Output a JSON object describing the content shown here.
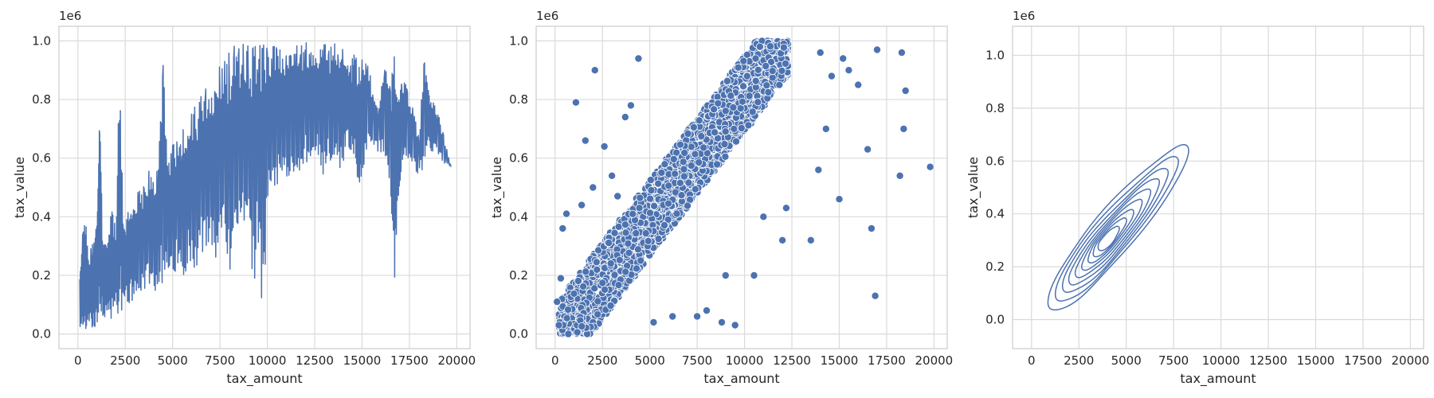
{
  "colors": {
    "series": "#4c72b0",
    "grid": "#dadada",
    "frame": "#cccccc",
    "background": "#ffffff",
    "text": "#262626"
  },
  "chart_data": [
    {
      "type": "line",
      "xlabel": "tax_amount",
      "ylabel": "tax_value",
      "y_offset_text": "1e6",
      "xlim": [
        -1000,
        20700
      ],
      "ylim": [
        -50000,
        1050000
      ],
      "xticks": [
        0,
        2500,
        5000,
        7500,
        10000,
        12500,
        15000,
        17500,
        20000
      ],
      "yticks": [
        0.0,
        0.2,
        0.4,
        0.6,
        0.8,
        1.0
      ],
      "grid": true,
      "series": [
        {
          "color": "#4c72b0",
          "x": [
            100,
            250,
            400,
            550,
            700,
            850,
            1000,
            1150,
            1300,
            1450,
            1600,
            1800,
            2000,
            2200,
            2400,
            2600,
            2800,
            3000,
            3250,
            3500,
            3750,
            4000,
            4250,
            4500,
            4750,
            5000,
            5250,
            5500,
            5750,
            6000,
            6250,
            6500,
            6750,
            7000,
            7250,
            7500,
            7750,
            8000,
            8250,
            8500,
            8750,
            9000,
            9250,
            9500,
            9750,
            10000,
            10250,
            10500,
            10750,
            11000,
            11250,
            11500,
            11750,
            12000,
            12250,
            12500,
            12750,
            13000,
            13250,
            13500,
            13750,
            14000,
            14200,
            14400,
            14600,
            14800,
            15000,
            15300,
            15600,
            15900,
            16200,
            16500,
            16700,
            16900,
            17100,
            17400,
            17700,
            18000,
            18300,
            18500,
            18700,
            19000,
            19300,
            19700
          ],
          "upper": [
            190000,
            370000,
            410000,
            260000,
            300000,
            320000,
            380000,
            790000,
            350000,
            330000,
            360000,
            420000,
            360000,
            900000,
            380000,
            420000,
            450000,
            480000,
            500000,
            520000,
            560000,
            540000,
            580000,
            940000,
            620000,
            650000,
            680000,
            700000,
            740000,
            760000,
            790000,
            820000,
            850000,
            870000,
            900000,
            920000,
            950000,
            970000,
            990000,
            990000,
            1000000,
            1000000,
            1000000,
            1000000,
            1000000,
            1000000,
            1000000,
            1000000,
            1000000,
            1000000,
            1000000,
            1000000,
            1000000,
            1000000,
            1000000,
            990000,
            1000000,
            990000,
            980000,
            1000000,
            960000,
            1000000,
            940000,
            930000,
            960000,
            950000,
            940000,
            960000,
            800000,
            780000,
            960000,
            840000,
            970000,
            880000,
            900000,
            840000,
            780000,
            680000,
            960000,
            840000,
            800000,
            760000,
            680000,
            570000
          ],
          "lower": [
            20000,
            15000,
            10000,
            15000,
            20000,
            15000,
            20000,
            30000,
            25000,
            40000,
            60000,
            50000,
            60000,
            70000,
            80000,
            90000,
            100000,
            120000,
            130000,
            150000,
            170000,
            120000,
            180000,
            150000,
            200000,
            180000,
            240000,
            160000,
            220000,
            250000,
            200000,
            280000,
            240000,
            300000,
            190000,
            320000,
            350000,
            180000,
            330000,
            380000,
            300000,
            360000,
            120000,
            330000,
            20000,
            400000,
            450000,
            500000,
            480000,
            520000,
            550000,
            560000,
            540000,
            580000,
            600000,
            620000,
            560000,
            520000,
            600000,
            580000,
            550000,
            580000,
            640000,
            600000,
            620000,
            450000,
            500000,
            650000,
            640000,
            620000,
            620000,
            400000,
            130000,
            420000,
            560000,
            600000,
            560000,
            540000,
            540000,
            640000,
            620000,
            600000,
            580000,
            570000
          ]
        }
      ]
    },
    {
      "type": "scatter",
      "xlabel": "tax_amount",
      "ylabel": "tax_value",
      "y_offset_text": "1e6",
      "xlim": [
        -1000,
        20700
      ],
      "ylim": [
        -50000,
        1050000
      ],
      "xticks": [
        0,
        2500,
        5000,
        7500,
        10000,
        12500,
        15000,
        17500,
        20000
      ],
      "yticks": [
        0.0,
        0.2,
        0.4,
        0.6,
        0.8,
        1.0
      ],
      "grid": true,
      "band_slope": 85,
      "band_width": 260000,
      "band_x_range": [
        200,
        12300
      ],
      "outliers": [
        [
          1100,
          790000
        ],
        [
          2100,
          900000
        ],
        [
          4400,
          940000
        ],
        [
          3700,
          740000
        ],
        [
          4000,
          780000
        ],
        [
          1600,
          660000
        ],
        [
          2600,
          640000
        ],
        [
          16500,
          630000
        ],
        [
          17000,
          970000
        ],
        [
          19800,
          570000
        ],
        [
          18500,
          830000
        ],
        [
          18200,
          540000
        ],
        [
          18300,
          960000
        ],
        [
          18400,
          700000
        ],
        [
          16700,
          360000
        ],
        [
          16900,
          130000
        ],
        [
          15000,
          460000
        ],
        [
          13500,
          320000
        ],
        [
          9500,
          30000
        ],
        [
          8800,
          40000
        ],
        [
          7500,
          60000
        ],
        [
          6200,
          60000
        ],
        [
          11000,
          400000
        ],
        [
          14000,
          960000
        ],
        [
          15500,
          900000
        ],
        [
          16000,
          850000
        ],
        [
          15200,
          940000
        ],
        [
          14600,
          880000
        ],
        [
          13900,
          560000
        ],
        [
          14300,
          700000
        ],
        [
          12000,
          320000
        ],
        [
          10500,
          200000
        ],
        [
          8000,
          80000
        ],
        [
          9000,
          200000
        ],
        [
          300,
          190000
        ],
        [
          100,
          110000
        ],
        [
          600,
          410000
        ],
        [
          400,
          360000
        ],
        [
          2000,
          500000
        ],
        [
          1400,
          440000
        ],
        [
          3300,
          470000
        ],
        [
          3000,
          540000
        ],
        [
          200,
          30000
        ],
        [
          700,
          0
        ],
        [
          5200,
          40000
        ],
        [
          12200,
          430000
        ]
      ]
    },
    {
      "type": "kde",
      "xlabel": "tax_amount",
      "ylabel": "tax_value",
      "y_offset_text": "1e6",
      "xlim": [
        -1000,
        20700
      ],
      "ylim": [
        -110000,
        1110000
      ],
      "xticks": [
        0,
        2500,
        5000,
        7500,
        10000,
        12500,
        15000,
        17500,
        20000
      ],
      "yticks": [
        0.0,
        0.2,
        0.4,
        0.6,
        0.8,
        1.0
      ],
      "grid": true,
      "center": [
        4000,
        300000
      ],
      "direction": [
        7500,
        640000
      ],
      "levels": [
        {
          "a": 1.12,
          "b": 380
        },
        {
          "a": 0.98,
          "b": 320
        },
        {
          "a": 0.84,
          "b": 270
        },
        {
          "a": 0.72,
          "b": 220
        },
        {
          "a": 0.6,
          "b": 175
        },
        {
          "a": 0.48,
          "b": 135
        },
        {
          "a": 0.36,
          "b": 100
        },
        {
          "a": 0.26,
          "b": 70
        },
        {
          "a": 0.16,
          "b": 45
        }
      ]
    }
  ]
}
